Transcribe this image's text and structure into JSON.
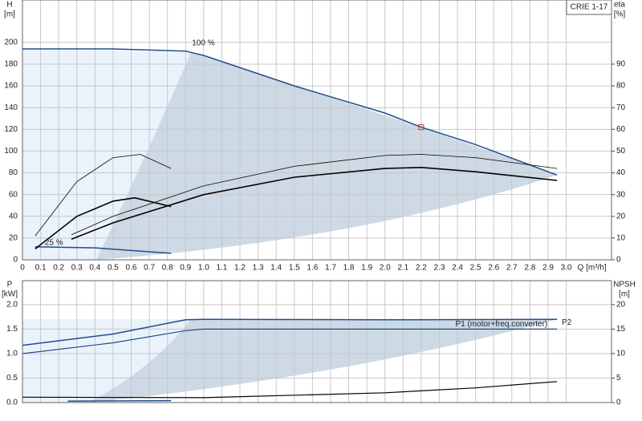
{
  "chart_data": [
    {
      "type": "line",
      "title": "CRIE 1-17",
      "ylabel": "H",
      "yunit": "[m]",
      "y2label": "eta",
      "y2unit": "[%]",
      "xlabel": "Q [m³/h]",
      "xlim": [
        0,
        3.25
      ],
      "ylim": [
        0,
        239
      ],
      "y2lim": [
        0,
        119.5
      ],
      "grid": true,
      "xtick_labels": true,
      "xticks": [
        0,
        0.1,
        0.2,
        0.3,
        0.4,
        0.5,
        0.6,
        0.7,
        0.8,
        0.9,
        {
          "value": 1,
          "label": "1.0"
        },
        1.1,
        1.2,
        1.3,
        1.4,
        1.5,
        1.6,
        1.7,
        1.8,
        1.9,
        {
          "value": 2,
          "label": "2.0"
        },
        2.1,
        2.2,
        2.3,
        2.4,
        2.5,
        2.6,
        2.7,
        2.8,
        2.9,
        {
          "value": 3,
          "label": "3.0"
        }
      ],
      "yticks": [
        0,
        20,
        40,
        60,
        80,
        100,
        120,
        140,
        160,
        180,
        200
      ],
      "y2ticks": [
        0,
        10,
        20,
        30,
        40,
        50,
        60,
        70,
        80,
        90
      ],
      "series": [
        {
          "label": "100 %",
          "color": "#1f4e8c",
          "width": 1.5,
          "x": [
            0,
            0.5,
            0.9,
            1.0,
            1.5,
            2.0,
            2.2,
            2.5,
            2.95
          ],
          "values": [
            194,
            194,
            192,
            188,
            160,
            135,
            122,
            106,
            78
          ]
        },
        {
          "label": "25 %",
          "color": "#1f4e8c",
          "width": 1.5,
          "x": [
            0.07,
            0.4,
            0.82
          ],
          "values": [
            12,
            11,
            6
          ]
        },
        {
          "axis": "y2",
          "color": "#000000",
          "width": 0.8,
          "x": [
            0.27,
            0.5,
            1.0,
            1.5,
            2.0,
            2.2,
            2.5,
            2.95
          ],
          "values": [
            11.5,
            20,
            34,
            43,
            48,
            48.5,
            47,
            42
          ]
        },
        {
          "axis": "y2",
          "color": "#000000",
          "width": 1.6,
          "x": [
            0.27,
            0.5,
            1.0,
            1.5,
            2.0,
            2.2,
            2.5,
            2.95
          ],
          "values": [
            9.5,
            17,
            30,
            38,
            42,
            42.5,
            40.5,
            36.5
          ]
        },
        {
          "axis": "y2",
          "color": "#000000",
          "width": 0.8,
          "x": [
            0.07,
            0.3,
            0.5,
            0.65,
            0.82
          ],
          "values": [
            11,
            36,
            47,
            48.5,
            42
          ]
        },
        {
          "axis": "y2",
          "color": "#000000",
          "width": 1.6,
          "x": [
            0.07,
            0.3,
            0.5,
            0.62,
            0.82
          ],
          "values": [
            5,
            20,
            27,
            28.5,
            24.5
          ]
        },
        {
          "marker": true,
          "color": "#e03030",
          "x": [
            2.2
          ],
          "values": [
            122
          ]
        }
      ]
    },
    {
      "type": "line",
      "ylabel": "P",
      "yunit": "[kW]",
      "y2label": "NPSH",
      "y2unit": "[m]",
      "xlim": [
        0,
        3.25
      ],
      "ylim": [
        0,
        2.49
      ],
      "y2lim": [
        0,
        24.9
      ],
      "grid": true,
      "xtick_labels": false,
      "xticks": [
        0,
        0.1,
        0.2,
        0.3,
        0.4,
        0.5,
        0.6,
        0.7,
        0.8,
        0.9,
        1,
        1.1,
        1.2,
        1.3,
        1.4,
        1.5,
        1.6,
        1.7,
        1.8,
        1.9,
        2,
        2.1,
        2.2,
        2.3,
        2.4,
        2.5,
        2.6,
        2.7,
        2.8,
        2.9,
        3
      ],
      "yticks": [
        {
          "value": 0,
          "label": "0.0"
        },
        0.5,
        {
          "value": 1,
          "label": "1.0"
        },
        1.5,
        {
          "value": 2,
          "label": "2.0"
        }
      ],
      "y2ticks": [
        0,
        5,
        10,
        15,
        20
      ],
      "series": [
        {
          "name": "P1 (motor+freq.converter)",
          "color": "#1f4e8c",
          "width": 1.5,
          "x": [
            0,
            0.5,
            0.9,
            1.0,
            2.0,
            2.95
          ],
          "values": [
            1.17,
            1.4,
            1.69,
            1.7,
            1.69,
            1.7
          ]
        },
        {
          "name": "P2",
          "color": "#1f4e8c",
          "width": 1.2,
          "x": [
            0,
            0.5,
            0.9,
            1.0,
            2.95
          ],
          "values": [
            1.0,
            1.22,
            1.47,
            1.5,
            1.5
          ]
        },
        {
          "color": "#1f4e8c",
          "width": 1.5,
          "x": [
            0.25,
            0.82
          ],
          "values": [
            0.03,
            0.04
          ]
        },
        {
          "axis": "y2",
          "color": "#000000",
          "width": 1.2,
          "x": [
            0,
            1.0,
            2.0,
            2.5,
            2.95
          ],
          "values": [
            1.1,
            1.0,
            2.0,
            3.0,
            4.3
          ]
        }
      ]
    }
  ]
}
